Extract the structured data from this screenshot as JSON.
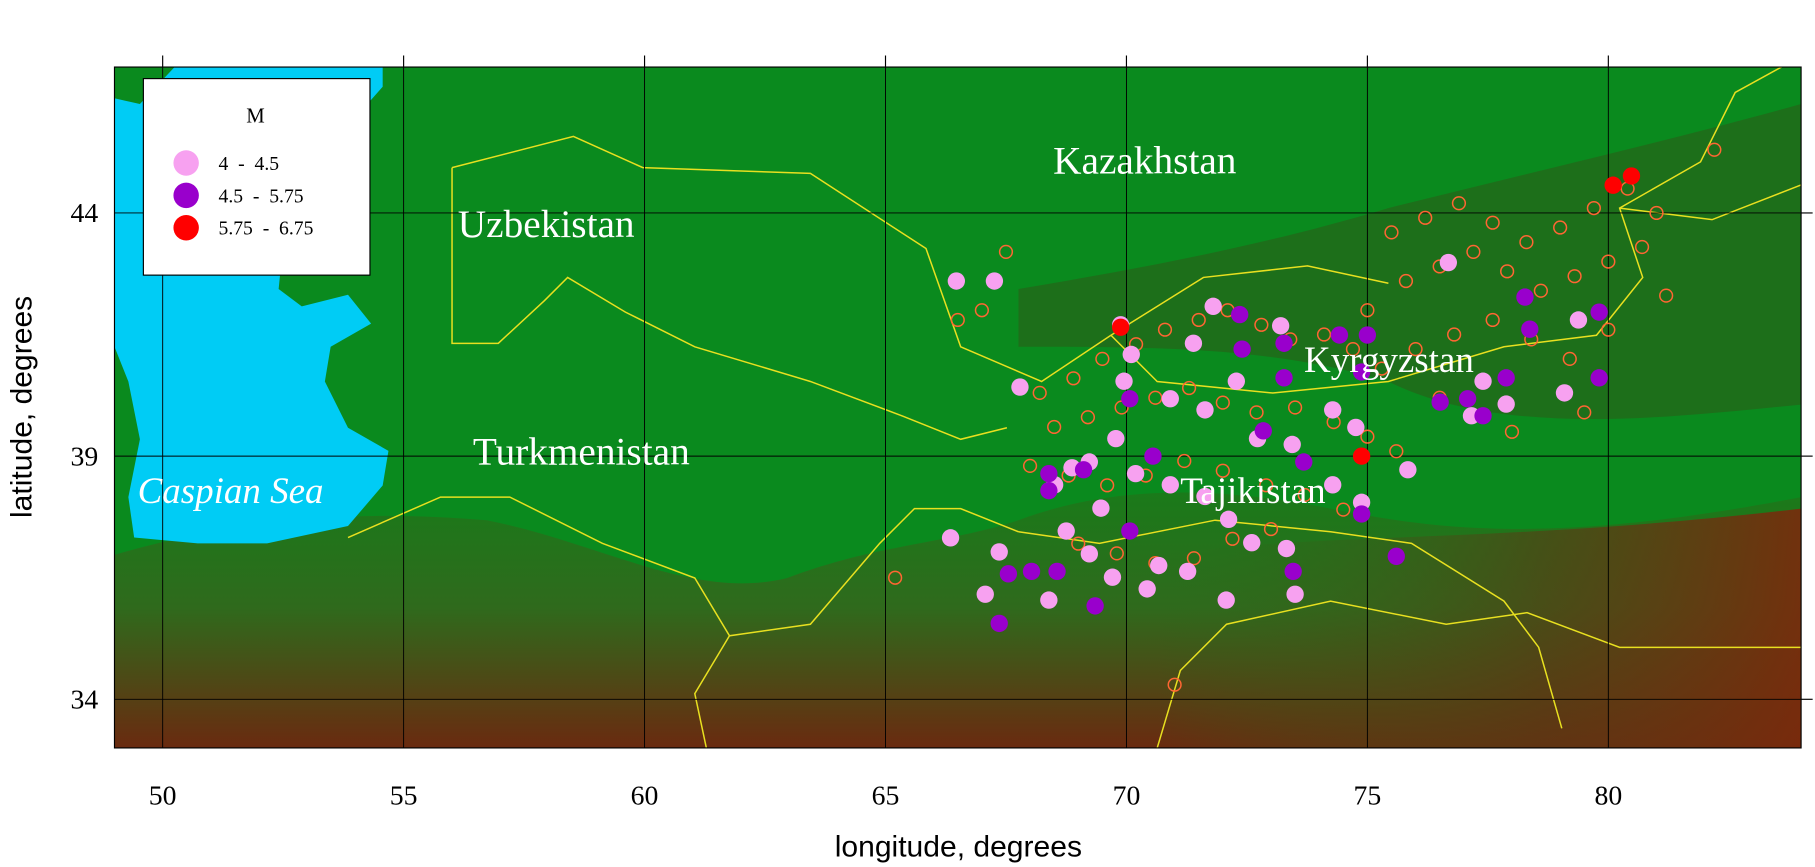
{
  "chart_data": {
    "type": "scatter",
    "xlabel": "longitude, degrees",
    "ylabel": "latitude, degrees",
    "xlim": [
      49,
      84
    ],
    "ylim": [
      33,
      47
    ],
    "xticks": [
      50,
      55,
      60,
      65,
      70,
      75,
      80
    ],
    "yticks": [
      34,
      39,
      44
    ],
    "grid": true,
    "legend_title": "M",
    "legend": "upper left",
    "annotations": [
      "Kazakhstan",
      "Uzbekistan",
      "Turkmenistan",
      "Caspian Sea",
      "Kyrgyzstan",
      "Tajikistan"
    ],
    "series": [
      {
        "color": "#ff6633",
        "x": [
          68.2,
          68.9,
          69.5,
          70.2,
          70.8,
          71.5,
          72.1,
          72.8,
          73.4,
          74.1,
          74.7,
          75.3,
          68.5,
          69.2,
          69.9,
          70.6,
          71.3,
          72.0,
          72.7,
          73.5,
          74.3,
          75.0,
          75.6,
          68.0,
          68.8,
          69.6,
          70.4,
          71.2,
          72.0,
          72.9,
          73.7,
          74.5,
          69.0,
          69.8,
          70.6,
          71.4,
          72.2,
          73.0,
          75.5,
          76.2,
          76.9,
          77.6,
          78.3,
          79.0,
          79.7,
          80.4,
          81.0,
          75.8,
          76.5,
          77.2,
          77.9,
          78.6,
          79.3,
          80.0,
          80.7,
          76.0,
          76.8,
          77.6,
          78.4,
          79.2,
          80.0,
          75.0,
          76.5,
          78.0,
          79.5,
          81.2,
          66.5,
          67.0,
          65.2,
          67.5,
          71.0,
          82.2
        ],
        "values": [
          40.3,
          40.6,
          41.0,
          41.3,
          41.6,
          41.8,
          42.0,
          41.7,
          41.4,
          41.5,
          41.2,
          40.8,
          39.6,
          39.8,
          40.0,
          40.2,
          40.4,
          40.1,
          39.9,
          40.0,
          39.7,
          39.4,
          39.1,
          38.8,
          38.6,
          38.4,
          38.6,
          38.9,
          38.7,
          38.4,
          38.2,
          37.9,
          37.2,
          37.0,
          36.8,
          36.9,
          37.3,
          37.5,
          43.6,
          43.9,
          44.2,
          43.8,
          43.4,
          43.7,
          44.1,
          44.5,
          44.0,
          42.6,
          42.9,
          43.2,
          42.8,
          42.4,
          42.7,
          43.0,
          43.3,
          41.2,
          41.5,
          41.8,
          41.4,
          41.0,
          41.6,
          42.0,
          40.2,
          39.5,
          39.9,
          42.3,
          41.8,
          42.0,
          36.5,
          43.2,
          34.3,
          45.3
        ]
      },
      {
        "name": "4  -  4.5",
        "color": "#f7a1f0",
        "x": [
          66.47,
          67.26,
          67.79,
          69.88,
          70.1,
          69.95,
          70.91,
          71.8,
          71.39,
          73.2,
          72.28,
          71.63,
          72.72,
          73.44,
          74.28,
          74.76,
          69.78,
          69.23,
          70.19,
          70.91,
          71.63,
          72.12,
          72.6,
          73.32,
          74.28,
          74.88,
          75.84,
          76.68,
          79.38,
          79.09,
          77.16,
          77.88,
          77.4,
          68.75,
          69.23,
          69.71,
          70.43,
          68.39,
          67.07,
          67.36,
          66.35,
          72.07,
          71.27,
          70.67,
          69.47,
          68.51,
          68.87,
          73.5
        ],
        "values": [
          42.6,
          42.6,
          40.42,
          41.7,
          41.09,
          40.54,
          40.18,
          42.08,
          41.32,
          41.68,
          40.54,
          39.95,
          39.36,
          39.24,
          39.95,
          39.59,
          39.36,
          38.88,
          38.64,
          38.41,
          38.17,
          37.7,
          37.22,
          37.1,
          38.41,
          38.05,
          38.72,
          42.98,
          41.8,
          40.3,
          39.83,
          40.07,
          40.54,
          37.46,
          36.99,
          36.51,
          36.27,
          36.04,
          36.16,
          37.03,
          37.32,
          36.04,
          36.63,
          36.75,
          37.93,
          38.41,
          38.76,
          36.16
        ]
      },
      {
        "name": "4.5  -  5.75",
        "color": "#9900cc",
        "x": [
          74.88,
          74.42,
          75.0,
          72.35,
          72.4,
          73.27,
          73.27,
          70.07,
          78.27,
          79.81,
          78.37,
          79.81,
          77.88,
          76.51,
          77.08,
          77.4,
          72.84,
          69.11,
          68.39,
          68.39,
          70.55,
          70.07,
          67.55,
          68.03,
          68.56,
          69.35,
          67.36,
          73.46,
          75.6,
          73.68,
          74.88
        ],
        "values": [
          40.73,
          41.49,
          41.49,
          41.91,
          41.2,
          41.32,
          40.61,
          40.18,
          42.27,
          41.96,
          41.61,
          40.61,
          40.61,
          40.11,
          40.18,
          39.83,
          39.52,
          38.72,
          38.64,
          38.29,
          39.0,
          37.46,
          36.58,
          36.63,
          36.63,
          35.92,
          35.56,
          36.63,
          36.94,
          38.88,
          37.81
        ]
      },
      {
        "name": "5.75  -  6.75",
        "color": "#ff0000",
        "x": [
          69.88,
          74.88,
          80.1,
          80.48
        ],
        "values": [
          41.65,
          39.0,
          44.57,
          44.76
        ]
      }
    ]
  }
}
